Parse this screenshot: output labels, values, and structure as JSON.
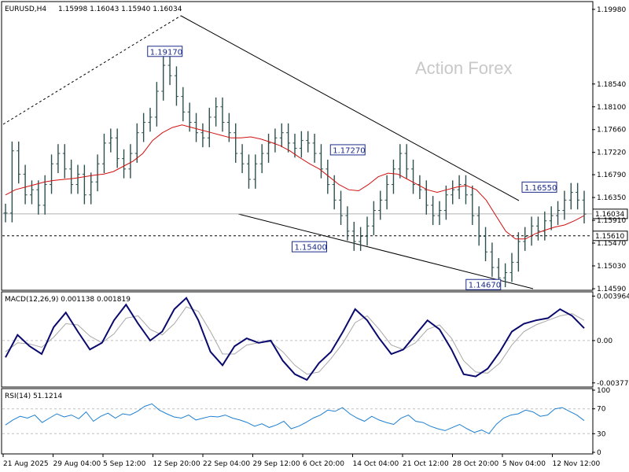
{
  "header": {
    "symbol": "EURUSD,H4",
    "ohlc": "1.15998 1.16043 1.15940 1.16034"
  },
  "watermark": "Action Forex",
  "chart_data": [
    {
      "type": "candlestick",
      "ylim": [
        1.1459,
        1.201
      ],
      "yticks": [
        "1.19980",
        "1.18540",
        "1.18100",
        "1.17660",
        "1.17220",
        "1.16790",
        "1.16350",
        "1.15910",
        "1.15470",
        "1.15030",
        "1.14590"
      ],
      "ytick_values": [
        1.1998,
        1.1854,
        1.181,
        1.1766,
        1.1722,
        1.1679,
        1.1635,
        1.1591,
        1.1547,
        1.1503,
        1.1459
      ],
      "current_price": {
        "value": 1.16034,
        "label": "1.16034"
      },
      "horizontal_level": {
        "value": 1.1561,
        "label": "1.15610"
      },
      "pivot_labels": [
        {
          "label": "1.19170",
          "value": 1.1917,
          "x_index": 0.305
        },
        {
          "label": "1.17270",
          "value": 1.1727,
          "x_index": 0.615
        },
        {
          "label": "1.15400",
          "value": 1.154,
          "x_index": 0.55
        },
        {
          "label": "1.16550",
          "value": 1.1655,
          "x_index": 0.94
        },
        {
          "label": "1.14670",
          "value": 1.1467,
          "x_index": 0.845
        }
      ],
      "close_series": [
        1.1605,
        1.1725,
        1.168,
        1.164,
        1.165,
        1.162,
        1.166,
        1.17,
        1.172,
        1.169,
        1.166,
        1.168,
        1.164,
        1.1665,
        1.17,
        1.174,
        1.175,
        1.171,
        1.169,
        1.172,
        1.176,
        1.178,
        1.179,
        1.184,
        1.189,
        1.187,
        1.183,
        1.18,
        1.178,
        1.176,
        1.175,
        1.179,
        1.181,
        1.178,
        1.176,
        1.172,
        1.17,
        1.167,
        1.17,
        1.172,
        1.174,
        1.175,
        1.176,
        1.174,
        1.173,
        1.1745,
        1.174,
        1.172,
        1.169,
        1.166,
        1.163,
        1.16,
        1.157,
        1.155,
        1.156,
        1.158,
        1.161,
        1.163,
        1.166,
        1.169,
        1.172,
        1.169,
        1.166,
        1.165,
        1.162,
        1.16,
        1.161,
        1.164,
        1.165,
        1.166,
        1.164,
        1.16,
        1.156,
        1.153,
        1.15,
        1.148,
        1.149,
        1.151,
        1.155,
        1.156,
        1.158,
        1.157,
        1.159,
        1.16,
        1.161,
        1.163,
        1.1645,
        1.163,
        1.1603
      ],
      "ma_series": [
        1.164,
        1.165,
        1.1655,
        1.166,
        1.1665,
        1.1668,
        1.167,
        1.1672,
        1.1675,
        1.1678,
        1.168,
        1.1685,
        1.1695,
        1.1705,
        1.172,
        1.1745,
        1.176,
        1.177,
        1.1775,
        1.177,
        1.1765,
        1.176,
        1.1755,
        1.175,
        1.175,
        1.1752,
        1.1748,
        1.1742,
        1.1735,
        1.1725,
        1.1712,
        1.17,
        1.169,
        1.1675,
        1.166,
        1.165,
        1.1648,
        1.166,
        1.1675,
        1.1682,
        1.168,
        1.167,
        1.166,
        1.165,
        1.1645,
        1.165,
        1.1655,
        1.1658,
        1.165,
        1.163,
        1.16,
        1.157,
        1.1555,
        1.1555,
        1.1565,
        1.1572,
        1.1578,
        1.1582,
        1.159,
        1.16
      ]
    },
    {
      "type": "line",
      "title": "MACD(12,26,9) 0.001138 0.001819",
      "ylim": [
        -0.004,
        0.0042
      ],
      "yticks": [
        "0.003964",
        "0.00",
        "-0.003774"
      ],
      "ytick_values": [
        0.003964,
        0.0,
        -0.003774
      ],
      "series": [
        {
          "values": [
            -0.0015,
            0.0005,
            -0.0005,
            -0.0012,
            0.0012,
            0.0025,
            0.0008,
            -0.0008,
            -0.0002,
            0.0018,
            0.0032,
            0.0015,
            0.0,
            0.0008,
            0.0028,
            0.0038,
            0.0018,
            -0.001,
            -0.0022,
            -0.0005,
            0.0002,
            -0.0002,
            0.0,
            -0.0018,
            -0.003,
            -0.0035,
            -0.002,
            -0.001,
            0.0008,
            0.0028,
            0.0018,
            0.0002,
            -0.0012,
            -0.0008,
            0.0005,
            0.0018,
            0.001,
            -0.0008,
            -0.003,
            -0.0032,
            -0.0025,
            -0.001,
            0.0008,
            0.0015,
            0.0018,
            0.002,
            0.0028,
            0.0022,
            0.0011
          ]
        },
        {
          "values": [
            -0.001,
            -0.0002,
            -0.0003,
            -0.0006,
            0.0003,
            0.0015,
            0.0014,
            0.0004,
            -0.0002,
            0.0006,
            0.002,
            0.0022,
            0.001,
            0.0005,
            0.0015,
            0.003,
            0.0026,
            0.0008,
            -0.0012,
            -0.0012,
            -0.0004,
            -0.0002,
            -0.0001,
            -0.001,
            -0.0022,
            -0.003,
            -0.0028,
            -0.0016,
            -0.0002,
            0.0016,
            0.0022,
            0.001,
            -0.0004,
            -0.0008,
            -0.0002,
            0.001,
            0.0014,
            0.0002,
            -0.0018,
            -0.0028,
            -0.0029,
            -0.002,
            -0.0004,
            0.0008,
            0.0014,
            0.0018,
            0.0022,
            0.0024,
            0.0018
          ]
        }
      ]
    },
    {
      "type": "line",
      "title": "RSI(14) 51.1214",
      "ylim": [
        0,
        100
      ],
      "yticks": [
        "100",
        "70",
        "30",
        "0"
      ],
      "ytick_values": [
        100,
        70,
        30,
        0
      ],
      "levels": [
        70,
        30
      ],
      "series": [
        {
          "values": [
            44,
            52,
            58,
            55,
            60,
            48,
            55,
            62,
            57,
            60,
            54,
            65,
            50,
            58,
            63,
            55,
            62,
            60,
            66,
            74,
            78,
            68,
            62,
            57,
            55,
            60,
            52,
            55,
            58,
            57,
            60,
            55,
            52,
            48,
            42,
            46,
            40,
            44,
            50,
            38,
            42,
            48,
            55,
            60,
            68,
            66,
            72,
            62,
            55,
            50,
            58,
            52,
            48,
            45,
            55,
            60,
            50,
            48,
            42,
            38,
            35,
            40,
            45,
            38,
            32,
            36,
            30,
            45,
            55,
            60,
            62,
            68,
            65,
            58,
            60,
            70,
            72,
            66,
            60,
            51
          ]
        }
      ]
    }
  ],
  "time_axis": {
    "labels": [
      "21 Aug 2025",
      "29 Aug 04:00",
      "5 Sep 12:00",
      "12 Sep 20:00",
      "22 Sep 04:00",
      "29 Sep 12:00",
      "6 Oct 20:00",
      "14 Oct 04:00",
      "21 Oct 12:00",
      "28 Oct 20:00",
      "5 Nov 04:00",
      "12 Nov 12:00"
    ]
  },
  "colors": {
    "candle": "#2f4f4f",
    "ma": "#d01010",
    "macd": "#0a0a6e",
    "signal": "#a8a8a8",
    "rsi": "#1e7fd0",
    "trendline": "#000000"
  }
}
